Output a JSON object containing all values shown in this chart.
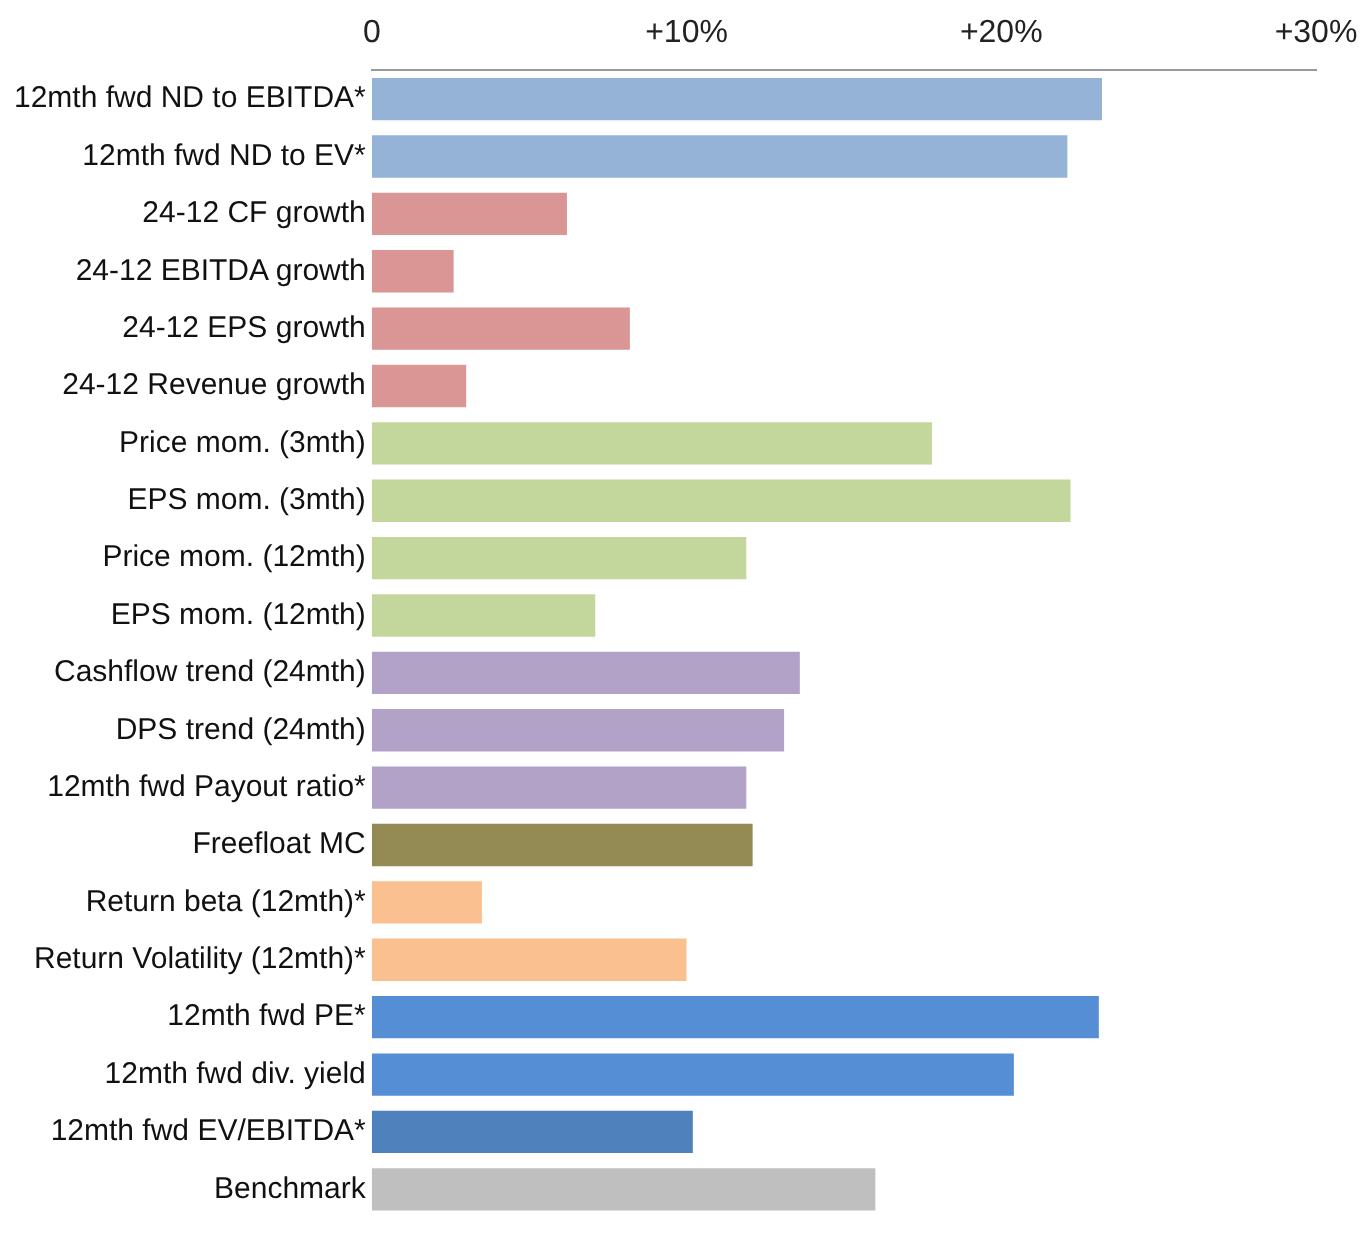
{
  "chart_data": {
    "type": "bar",
    "orientation": "horizontal",
    "categories": [
      "12mth fwd ND to EBITDA*",
      "12mth fwd ND to EV*",
      "24-12 CF growth",
      "24-12 EBITDA growth",
      "24-12 EPS growth",
      "24-12 Revenue growth",
      "Price mom. (3mth)",
      "EPS mom. (3mth)",
      "Price mom. (12mth)",
      "EPS mom. (12mth)",
      "Cashflow trend (24mth)",
      "DPS trend (24mth)",
      "12mth fwd Payout ratio*",
      "Freefloat MC",
      "Return beta (12mth)*",
      "Return Volatility (12mth)*",
      "12mth fwd PE*",
      "12mth fwd div. yield",
      "12mth fwd EV/EBITDA*",
      "Benchmark"
    ],
    "values": [
      23.2,
      22.1,
      6.2,
      2.6,
      8.2,
      3.0,
      17.8,
      22.2,
      11.9,
      7.1,
      13.6,
      13.1,
      11.9,
      12.1,
      3.5,
      10.0,
      23.1,
      20.4,
      10.2,
      16.0
    ],
    "colors": [
      "#95b3d7",
      "#95b3d7",
      "#d99694",
      "#d99694",
      "#d99694",
      "#d99694",
      "#c3d69b",
      "#c3d69b",
      "#c3d69b",
      "#c3d69b",
      "#b3a2c7",
      "#b3a2c7",
      "#b3a2c7",
      "#948a54",
      "#fac090",
      "#fac090",
      "#558ed5",
      "#558ed5",
      "#4f81bd",
      "#bfbfbf"
    ],
    "xlim": [
      0,
      30
    ],
    "xticks": [
      0,
      {
        "value": 10,
        "label": "+10%"
      },
      {
        "value": 20,
        "label": "+20%"
      },
      {
        "value": 30,
        "label": "+30%"
      }
    ],
    "grid": false,
    "legend": false
  }
}
